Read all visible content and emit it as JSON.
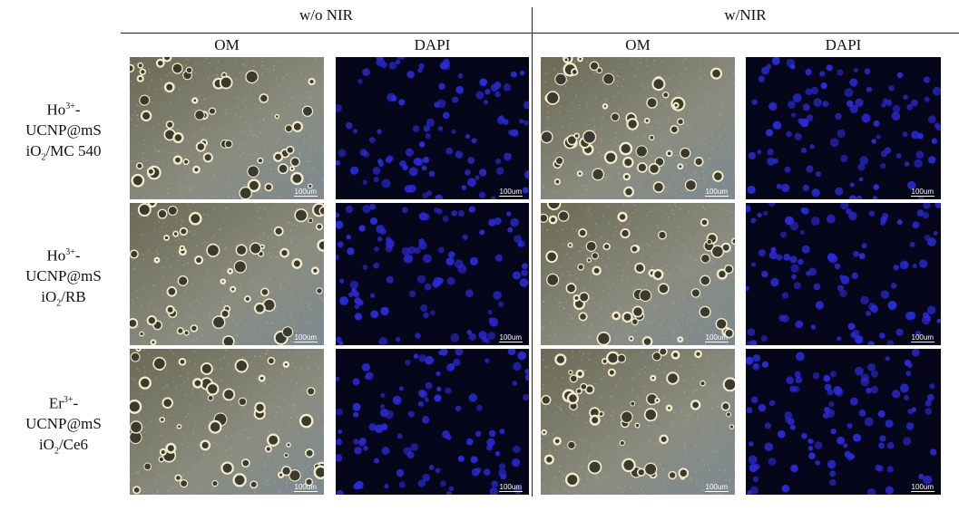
{
  "header": {
    "groups": [
      "w/o NIR",
      "w/NIR"
    ],
    "columns": [
      "OM",
      "DAPI",
      "OM",
      "DAPI"
    ]
  },
  "rows": [
    {
      "label": {
        "ion": "Ho",
        "charge": "3+",
        "ion_end": "-",
        "line2": "UCNP@mS",
        "line3_start": "iO",
        "line3_sub": "2",
        "line3_end": "/MC 540"
      },
      "images": [
        {
          "scale_bar": "100um"
        },
        {
          "scale_bar": "100um"
        },
        {
          "scale_bar": "100um"
        },
        {
          "scale_bar": "100um"
        }
      ]
    },
    {
      "label": {
        "ion": "Ho",
        "charge": "3+",
        "ion_end": "-",
        "line2": "UCNP@mS",
        "line3_start": "iO",
        "line3_sub": "2",
        "line3_end": "/RB"
      },
      "images": [
        {
          "scale_bar": "100um"
        },
        {
          "scale_bar": "100um"
        },
        {
          "scale_bar": "100um"
        },
        {
          "scale_bar": "100um"
        }
      ]
    },
    {
      "label": {
        "ion": "Er",
        "charge": "3+",
        "ion_end": "-",
        "line2": "UCNP@mS",
        "line3_start": "iO",
        "line3_sub": "2",
        "line3_end": "/Ce6"
      },
      "images": [
        {
          "scale_bar": "100um"
        },
        {
          "scale_bar": "100um"
        },
        {
          "scale_bar": "100um"
        },
        {
          "scale_bar": "100um"
        }
      ]
    }
  ]
}
